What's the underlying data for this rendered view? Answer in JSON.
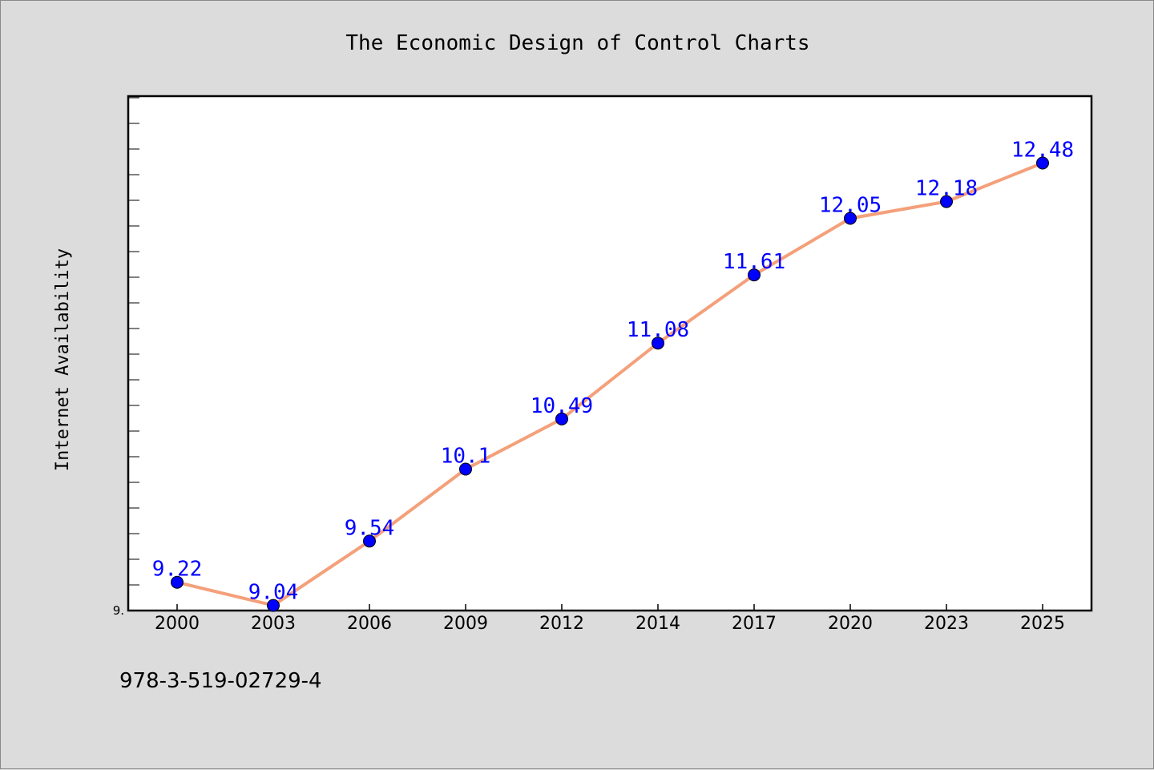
{
  "chart_data": {
    "type": "line",
    "title": "The Economic Design of Control Charts",
    "ylabel": "Internet Availability",
    "xlabel": "",
    "categories": [
      "2000",
      "2003",
      "2006",
      "2009",
      "2012",
      "2014",
      "2017",
      "2020",
      "2023",
      "2025"
    ],
    "series": [
      {
        "values": [
          9.22,
          9.04,
          9.54,
          10.1,
          10.49,
          11.08,
          11.61,
          12.05,
          12.18,
          12.48
        ],
        "line_color": "#f4a07a",
        "marker_color": "#0000ff"
      }
    ],
    "data_labels": [
      "9.22",
      "9.04",
      "9.54",
      "10.1",
      "10.49",
      "11.08",
      "11.61",
      "12.05",
      "12.18",
      "12.48"
    ],
    "ylim": [
      9.0,
      13.0
    ],
    "y_tick_label": "9.",
    "grid": false,
    "legend": "none"
  },
  "footnote": "978-3-519-02729-4",
  "colors": {
    "background": "#dcdcdc",
    "plot_background": "#ffffff",
    "line": "#f4a07a",
    "marker": "#0000ff",
    "label": "#0000ff"
  }
}
